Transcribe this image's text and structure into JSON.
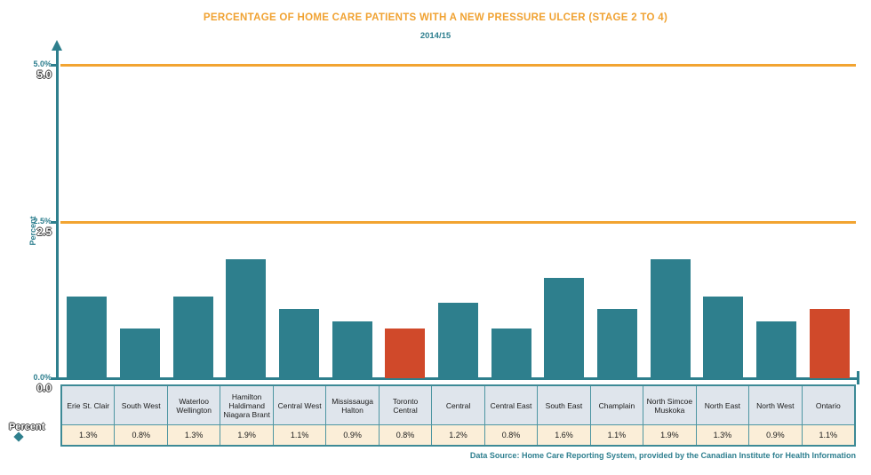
{
  "title": "PERCENTAGE OF HOME CARE PATIENTS WITH A NEW PRESSURE ULCER (STAGE 2 TO 4)",
  "subtitle": "2014/15",
  "chart_data": {
    "type": "bar",
    "categories": [
      "Erie St. Clair",
      "South West",
      "Waterloo Wellington",
      "Hamilton Haldimand Niagara Brant",
      "Central West",
      "Mississauga Halton",
      "Toronto Central",
      "Central",
      "Central East",
      "South East",
      "Champlain",
      "North Simcoe Muskoka",
      "North East",
      "North West",
      "Ontario"
    ],
    "values": [
      1.3,
      0.8,
      1.3,
      1.9,
      1.1,
      0.9,
      0.8,
      1.2,
      0.8,
      1.6,
      1.1,
      1.9,
      1.3,
      0.9,
      1.1
    ],
    "value_labels": [
      "1.3%",
      "0.8%",
      "1.3%",
      "1.9%",
      "1.1%",
      "0.9%",
      "0.8%",
      "1.2%",
      "0.8%",
      "1.6%",
      "1.1%",
      "1.9%",
      "1.3%",
      "0.9%",
      "1.1%"
    ],
    "highlighted_categories": [
      "Toronto Central",
      "Ontario"
    ],
    "highlighted_indices": [
      6,
      14
    ],
    "ylabel": "Percent",
    "ylim": [
      0,
      5
    ],
    "y_ticks": [
      {
        "value": 0.0,
        "pct_label": "0.0%",
        "plain_label": "0.0"
      },
      {
        "value": 2.5,
        "pct_label": "2.5%",
        "plain_label": "2.5"
      },
      {
        "value": 5.0,
        "pct_label": "5.0%",
        "plain_label": "5.0"
      }
    ],
    "reference_lines": [
      {
        "value": 2.5,
        "color": "#F2A431"
      },
      {
        "value": 5.0,
        "color": "#F2A431"
      }
    ],
    "grid": "off",
    "legend_position": "bottom-left",
    "bar_color_default": "#2E7F8D",
    "bar_color_highlight": "#D0492A"
  },
  "legend": {
    "label": "Percent",
    "marker_color": "#2E7F8D",
    "marker_shape": "diamond"
  },
  "table": {
    "header_row": [
      "Erie St. Clair",
      "South West",
      "Waterloo Wellington",
      "Hamilton Haldimand Niagara Brant",
      "Central West",
      "Mississauga Halton",
      "Toronto Central",
      "Central",
      "Central East",
      "South East",
      "Champlain",
      "North Simcoe Muskoka",
      "North East",
      "North West",
      "Ontario"
    ],
    "value_row": [
      "1.3%",
      "0.8%",
      "1.3%",
      "1.9%",
      "1.1%",
      "0.9%",
      "0.8%",
      "1.2%",
      "0.8%",
      "1.6%",
      "1.1%",
      "1.9%",
      "1.3%",
      "0.9%",
      "1.1%"
    ]
  },
  "footer": {
    "text": "Data Source: Home Care Reporting System, provided by the Canadian Institute for Health Information"
  },
  "colors": {
    "title": "#F0A232",
    "teal": "#2E7F8D",
    "highlight": "#D0492A",
    "reference_line": "#F2A431",
    "table_header_bg": "#DFE5EC",
    "table_value_bg": "#FBEED8",
    "table_border": "#3D8A96"
  }
}
